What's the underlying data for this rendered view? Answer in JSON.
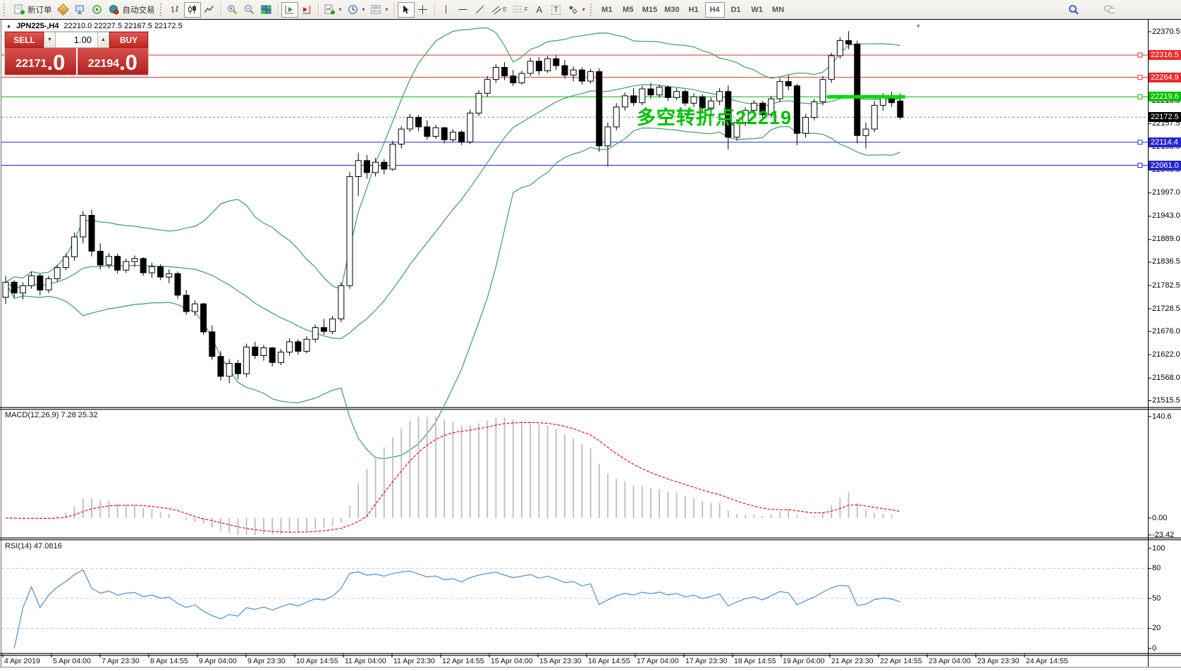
{
  "toolbar": {
    "new_order_label": "新订单",
    "autotrade_label": "自动交易",
    "timeframes": [
      "M1",
      "M5",
      "M15",
      "M30",
      "H1",
      "H4",
      "D1",
      "W1",
      "MN"
    ],
    "active_timeframe": "H4",
    "text_tool_label": "A",
    "label_tool_label": "T",
    "channel_tool_sub": "E",
    "fibo_tool_sub": "F"
  },
  "symbol_header": {
    "collapse_glyph": "▲",
    "title": "JPN225-,H4",
    "ohlc": "22210.0 22227.5 22167.5 22172.5"
  },
  "trade_panel": {
    "sell_label": "SELL",
    "buy_label": "BUY",
    "volume": "1.00",
    "down_glyph": "▼",
    "up_glyph": "▲",
    "sell_price": "22171",
    "sell_fraction": ".0",
    "buy_price": "22194",
    "buy_fraction": ".0"
  },
  "annotation": {
    "text": "多空转折点22219",
    "color": "#00c000"
  },
  "price_axis": {
    "ticks": [
      22370.5,
      22210.0,
      22157.5,
      22103.5,
      22049.5,
      21997.0,
      21943.0,
      21889.0,
      21836.5,
      21782.5,
      21728.5,
      21676.0,
      21622.0,
      21568.0,
      21515.5
    ],
    "tags": [
      {
        "value": 22316.5,
        "color": "#e82c2c"
      },
      {
        "value": 22264.9,
        "color": "#e82c2c"
      },
      {
        "value": 22219.6,
        "color": "#00c000"
      },
      {
        "value": 22114.4,
        "color": "#2626cf"
      },
      {
        "value": 22061.0,
        "color": "#2626cf"
      }
    ],
    "current": {
      "value": 22172.5,
      "color": "#000000"
    }
  },
  "macd_pane": {
    "label": "MACD(12,26,9) 7.28 25.32",
    "scale_max_label": "140.6",
    "scale_zero_label": "0.00",
    "scale_min_label": "-23.42",
    "scale_max": 140.6,
    "scale_min": -23.42,
    "histogram_color": "#bdbdbd",
    "signal_color": "#e60000"
  },
  "rsi_pane": {
    "label": "RSI(14) 47.0816",
    "levels": [
      100,
      80,
      50,
      20,
      0
    ],
    "dashed_levels": [
      80,
      50,
      20
    ],
    "line_color": "#4f8fce"
  },
  "time_axis": {
    "labels": [
      "4 Apr 2019",
      "5 Apr 04:00",
      "7 Apr 23:30",
      "8 Apr 14:55",
      "9 Apr 04:00",
      "9 Apr 23:30",
      "10 Apr 14:55",
      "11 Apr 04:00",
      "11 Apr 23:30",
      "12 Apr 14:55",
      "15 Apr 04:00",
      "15 Apr 23:30",
      "16 Apr 14:55",
      "17 Apr 04:00",
      "17 Apr 23:30",
      "18 Apr 14:55",
      "19 Apr 04:00",
      "21 Apr 23:30",
      "22 Apr 14:55",
      "23 Apr 04:00",
      "23 Apr 23:30",
      "24 Apr 14:55"
    ]
  },
  "chart_data": {
    "type": "candlestick",
    "symbol": "JPN225-",
    "period": "H4",
    "current_bar": {
      "open": 22210.0,
      "high": 22227.5,
      "low": 22167.5,
      "close": 22172.5
    },
    "ylim": [
      21500,
      22395
    ],
    "candles": [
      [
        21755,
        21805,
        21740,
        21790
      ],
      [
        21790,
        21795,
        21755,
        21765
      ],
      [
        21765,
        21790,
        21750,
        21782
      ],
      [
        21782,
        21815,
        21775,
        21805
      ],
      [
        21805,
        21810,
        21760,
        21772
      ],
      [
        21772,
        21805,
        21765,
        21798
      ],
      [
        21798,
        21830,
        21790,
        21824
      ],
      [
        21824,
        21856,
        21818,
        21849
      ],
      [
        21849,
        21905,
        21840,
        21895
      ],
      [
        21895,
        21955,
        21880,
        21945
      ],
      [
        21945,
        21958,
        21850,
        21862
      ],
      [
        21862,
        21880,
        21820,
        21830
      ],
      [
        21830,
        21858,
        21822,
        21850
      ],
      [
        21850,
        21856,
        21810,
        21818
      ],
      [
        21818,
        21845,
        21812,
        21838
      ],
      [
        21838,
        21852,
        21825,
        21845
      ],
      [
        21845,
        21848,
        21805,
        21812
      ],
      [
        21812,
        21835,
        21800,
        21826
      ],
      [
        21826,
        21832,
        21795,
        21802
      ],
      [
        21802,
        21820,
        21788,
        21810
      ],
      [
        21810,
        21815,
        21752,
        21760
      ],
      [
        21760,
        21772,
        21715,
        21722
      ],
      [
        21722,
        21748,
        21712,
        21740
      ],
      [
        21740,
        21742,
        21668,
        21675
      ],
      [
        21675,
        21690,
        21610,
        21618
      ],
      [
        21618,
        21630,
        21562,
        21572
      ],
      [
        21572,
        21612,
        21556,
        21602
      ],
      [
        21602,
        21610,
        21565,
        21578
      ],
      [
        21578,
        21648,
        21570,
        21640
      ],
      [
        21640,
        21652,
        21612,
        21620
      ],
      [
        21620,
        21645,
        21608,
        21638
      ],
      [
        21638,
        21640,
        21595,
        21604
      ],
      [
        21604,
        21635,
        21598,
        21628
      ],
      [
        21628,
        21660,
        21620,
        21652
      ],
      [
        21652,
        21658,
        21622,
        21630
      ],
      [
        21630,
        21665,
        21625,
        21658
      ],
      [
        21658,
        21692,
        21650,
        21685
      ],
      [
        21685,
        21705,
        21668,
        21676
      ],
      [
        21676,
        21712,
        21670,
        21705
      ],
      [
        21705,
        21790,
        21698,
        21782
      ],
      [
        21782,
        22045,
        21775,
        22035
      ],
      [
        22035,
        22090,
        21990,
        22072
      ],
      [
        22072,
        22085,
        22030,
        22044
      ],
      [
        22044,
        22078,
        22035,
        22068
      ],
      [
        22068,
        22075,
        22040,
        22052
      ],
      [
        22052,
        22118,
        22048,
        22110
      ],
      [
        22110,
        22152,
        22100,
        22145
      ],
      [
        22145,
        22180,
        22138,
        22172
      ],
      [
        22172,
        22178,
        22140,
        22150
      ],
      [
        22150,
        22165,
        22120,
        22128
      ],
      [
        22128,
        22155,
        22122,
        22148
      ],
      [
        22148,
        22150,
        22112,
        22120
      ],
      [
        22120,
        22145,
        22115,
        22138
      ],
      [
        22138,
        22142,
        22108,
        22115
      ],
      [
        22115,
        22190,
        22110,
        22182
      ],
      [
        22182,
        22235,
        22175,
        22228
      ],
      [
        22228,
        22268,
        22220,
        22260
      ],
      [
        22260,
        22295,
        22252,
        22288
      ],
      [
        22288,
        22300,
        22258,
        22268
      ],
      [
        22268,
        22282,
        22245,
        22252
      ],
      [
        22252,
        22280,
        22248,
        22274
      ],
      [
        22274,
        22310,
        22268,
        22302
      ],
      [
        22302,
        22312,
        22270,
        22280
      ],
      [
        22280,
        22315,
        22275,
        22308
      ],
      [
        22308,
        22316,
        22282,
        22292
      ],
      [
        22292,
        22305,
        22262,
        22270
      ],
      [
        22270,
        22290,
        22255,
        22282
      ],
      [
        22282,
        22288,
        22248,
        22256
      ],
      [
        22256,
        22285,
        22250,
        22278
      ],
      [
        22278,
        22286,
        22092,
        22106
      ],
      [
        22106,
        22160,
        22058,
        22150
      ],
      [
        22150,
        22205,
        22142,
        22196
      ],
      [
        22196,
        22230,
        22188,
        22222
      ],
      [
        22222,
        22240,
        22198,
        22206
      ],
      [
        22206,
        22245,
        22200,
        22238
      ],
      [
        22238,
        22252,
        22215,
        22224
      ],
      [
        22224,
        22248,
        22218,
        22242
      ],
      [
        22242,
        22246,
        22210,
        22218
      ],
      [
        22218,
        22240,
        22212,
        22232
      ],
      [
        22232,
        22236,
        22198,
        22205
      ],
      [
        22205,
        22228,
        22196,
        22220
      ],
      [
        22220,
        22225,
        22186,
        22194
      ],
      [
        22194,
        22218,
        22180,
        22210
      ],
      [
        22210,
        22240,
        22200,
        22232
      ],
      [
        22232,
        22246,
        22098,
        22126
      ],
      [
        22126,
        22168,
        22118,
        22160
      ],
      [
        22160,
        22195,
        22152,
        22188
      ],
      [
        22188,
        22212,
        22180,
        22205
      ],
      [
        22205,
        22210,
        22170,
        22178
      ],
      [
        22178,
        22222,
        22172,
        22215
      ],
      [
        22215,
        22262,
        22208,
        22255
      ],
      [
        22255,
        22270,
        22235,
        22245
      ],
      [
        22245,
        22250,
        22108,
        22135
      ],
      [
        22135,
        22180,
        22125,
        22172
      ],
      [
        22172,
        22215,
        22165,
        22208
      ],
      [
        22208,
        22268,
        22200,
        22260
      ],
      [
        22260,
        22322,
        22252,
        22315
      ],
      [
        22315,
        22358,
        22308,
        22350
      ],
      [
        22350,
        22372,
        22330,
        22342
      ],
      [
        22342,
        22350,
        22112,
        22130
      ],
      [
        22130,
        22160,
        22100,
        22145
      ],
      [
        22145,
        22210,
        22138,
        22200
      ],
      [
        22200,
        22228,
        22188,
        22218
      ],
      [
        22218,
        22232,
        22196,
        22206
      ],
      [
        22210,
        22227.5,
        22167.5,
        22172.5
      ]
    ],
    "overlays": {
      "bollinger": {
        "period": 20,
        "deviation": 2,
        "color": "#3c9e68"
      }
    },
    "hlines": [
      {
        "price": 22316.5,
        "color": "#e82c2c"
      },
      {
        "price": 22264.9,
        "color": "#e82c2c"
      },
      {
        "price": 22219.6,
        "color": "#00c000"
      },
      {
        "price": 22114.4,
        "color": "#2626cf"
      },
      {
        "price": 22061.0,
        "color": "#2626cf"
      }
    ],
    "bold_segment": {
      "price": 22219.6,
      "from_bar": 96,
      "to_bar": 104,
      "color": "#00dd00"
    },
    "indicators": [
      {
        "name": "MACD",
        "params": [
          12,
          26,
          9
        ],
        "display_values": [
          7.28,
          25.32
        ]
      },
      {
        "name": "RSI",
        "params": [
          14
        ],
        "display_value": 47.0816
      }
    ]
  }
}
